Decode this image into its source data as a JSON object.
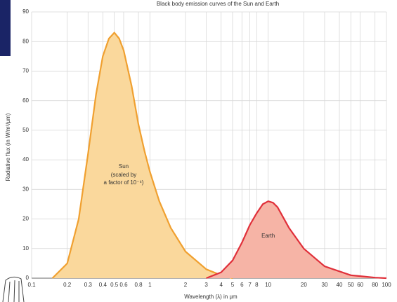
{
  "chart_data": {
    "type": "area",
    "title": "Black body emission curves of the Sun and Earth",
    "x_label": "Wavelength (λ) in μm",
    "y_label": "Radiative flux (in W/m²/μm)",
    "annotations": [
      "(scaled by",
      "a factor of 10⁻⁶)"
    ],
    "xscale": "log",
    "xlim": [
      0.1,
      100
    ],
    "xticks": [
      0.1,
      0.2,
      0.3,
      0.4,
      0.5,
      0.6,
      0.8,
      1,
      2,
      3,
      4,
      5,
      6,
      7,
      8,
      10,
      20,
      30,
      40,
      50,
      60,
      80,
      100
    ],
    "ylim": [
      0,
      90
    ],
    "yticks": [
      0,
      10,
      20,
      30,
      40,
      50,
      60,
      70,
      80,
      90
    ],
    "grid": true,
    "series": [
      {
        "name": "Sun",
        "color": "#f0a030",
        "fill": "#fad89c",
        "x": [
          0.15,
          0.2,
          0.25,
          0.3,
          0.35,
          0.4,
          0.45,
          0.5,
          0.55,
          0.6,
          0.7,
          0.8,
          0.9,
          1,
          1.2,
          1.5,
          2,
          3,
          4,
          5
        ],
        "values": [
          0,
          5,
          20,
          42,
          62,
          75,
          81,
          83,
          81,
          77,
          65,
          52,
          43,
          36,
          26,
          17,
          9,
          3,
          1,
          0
        ]
      },
      {
        "name": "Earth",
        "color": "#e0303a",
        "fill": "#f6b4a6",
        "x": [
          3,
          4,
          5,
          6,
          7,
          8,
          9,
          10,
          11,
          12,
          15,
          20,
          30,
          50,
          80,
          100
        ],
        "values": [
          0,
          2,
          6,
          12,
          18,
          22,
          25,
          26,
          25.5,
          24,
          17,
          10,
          4,
          1,
          0.2,
          0
        ]
      }
    ]
  }
}
